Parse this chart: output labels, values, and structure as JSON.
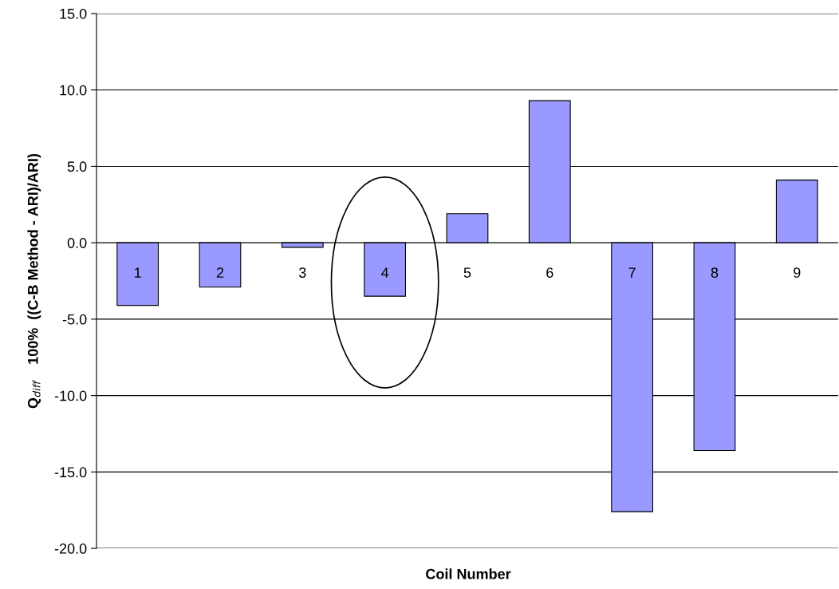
{
  "chart_data": {
    "type": "bar",
    "xlabel": "Coil Number",
    "ylabel": "Q$_{diff}$    100%  ((C-B Method - ARI)/ARI)",
    "categories": [
      "1",
      "2",
      "3",
      "4",
      "5",
      "6",
      "7",
      "8",
      "9"
    ],
    "values": [
      -4.1,
      -2.9,
      -0.3,
      -3.5,
      1.9,
      9.3,
      -17.6,
      -13.6,
      4.1
    ],
    "color": "#9999ff",
    "ylim": [
      -20,
      15
    ],
    "yticks": [
      {
        "value": -20,
        "label": "-20.0"
      },
      {
        "value": -15,
        "label": "-15.0"
      },
      {
        "value": -10,
        "label": "-10.0"
      },
      {
        "value": -5,
        "label": "-5.0"
      },
      {
        "value": 0,
        "label": "0.0"
      },
      {
        "value": 5,
        "label": "5.0"
      },
      {
        "value": 10,
        "label": "10.0"
      },
      {
        "value": 15,
        "label": "15.0"
      }
    ],
    "grid": "y"
  }
}
